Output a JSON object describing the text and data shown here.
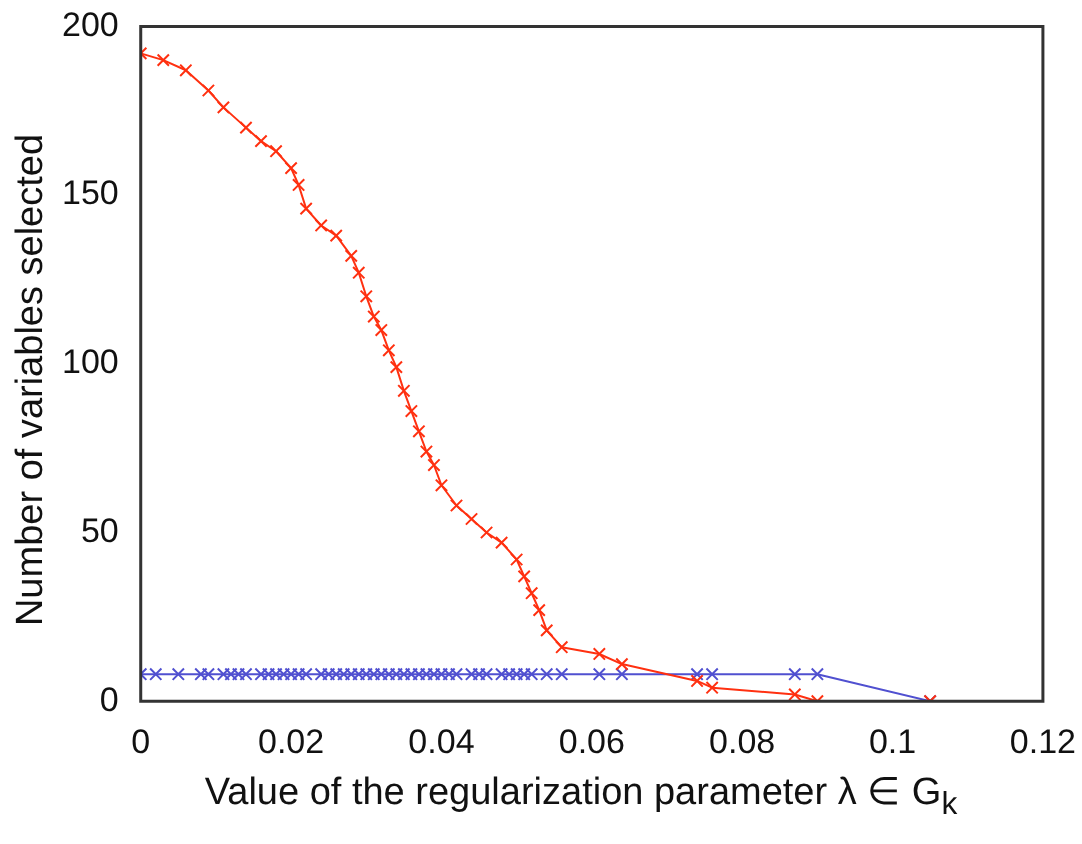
{
  "chart_data": {
    "type": "line",
    "xlabel": "Value of the regularization parameter λ ∈ G$_{k}$",
    "ylabel": "Number of variables selected",
    "xlim": [
      0,
      0.12
    ],
    "xticks": [
      0,
      0.02,
      0.04,
      0.06,
      0.08,
      0.1,
      0.12
    ],
    "ylim": [
      0,
      200
    ],
    "yticks": [
      0,
      50,
      100,
      150,
      200
    ],
    "grid": false,
    "legend": false,
    "marker": "cross",
    "line_style": "solid",
    "series": [
      {
        "color": "#ff3010",
        "x": [
          0,
          0.003,
          0.006,
          0.009,
          0.011,
          0.014,
          0.016,
          0.018,
          0.02,
          0.021,
          0.022,
          0.024,
          0.026,
          0.028,
          0.029,
          0.03,
          0.031,
          0.032,
          0.033,
          0.034,
          0.035,
          0.036,
          0.037,
          0.038,
          0.039,
          0.04,
          0.042,
          0.044,
          0.046,
          0.048,
          0.05,
          0.051,
          0.052,
          0.053,
          0.054,
          0.056,
          0.061,
          0.064,
          0.074,
          0.076,
          0.087,
          0.09,
          0.105
        ],
        "values": [
          192,
          190,
          187,
          181,
          176,
          170,
          166,
          163,
          158,
          153,
          146,
          141,
          138,
          132,
          127,
          120,
          114,
          110,
          104,
          99,
          92,
          86,
          80,
          74,
          70,
          64,
          58,
          54,
          50,
          47,
          42,
          37,
          32,
          27,
          21,
          16,
          14,
          11,
          6,
          4,
          2,
          0,
          0
        ]
      },
      {
        "color": "#5050d0",
        "x": [
          0,
          0.002,
          0.005,
          0.008,
          0.009,
          0.011,
          0.012,
          0.013,
          0.014,
          0.016,
          0.017,
          0.018,
          0.019,
          0.02,
          0.021,
          0.022,
          0.024,
          0.025,
          0.026,
          0.027,
          0.028,
          0.029,
          0.03,
          0.031,
          0.032,
          0.033,
          0.034,
          0.035,
          0.036,
          0.037,
          0.038,
          0.039,
          0.04,
          0.041,
          0.042,
          0.044,
          0.045,
          0.046,
          0.048,
          0.049,
          0.05,
          0.051,
          0.052,
          0.054,
          0.056,
          0.061,
          0.064,
          0.074,
          0.076,
          0.087,
          0.09,
          0.105
        ],
        "values": [
          8,
          8,
          8,
          8,
          8,
          8,
          8,
          8,
          8,
          8,
          8,
          8,
          8,
          8,
          8,
          8,
          8,
          8,
          8,
          8,
          8,
          8,
          8,
          8,
          8,
          8,
          8,
          8,
          8,
          8,
          8,
          8,
          8,
          8,
          8,
          8,
          8,
          8,
          8,
          8,
          8,
          8,
          8,
          8,
          8,
          8,
          8,
          8,
          8,
          8,
          8,
          0
        ]
      }
    ]
  }
}
